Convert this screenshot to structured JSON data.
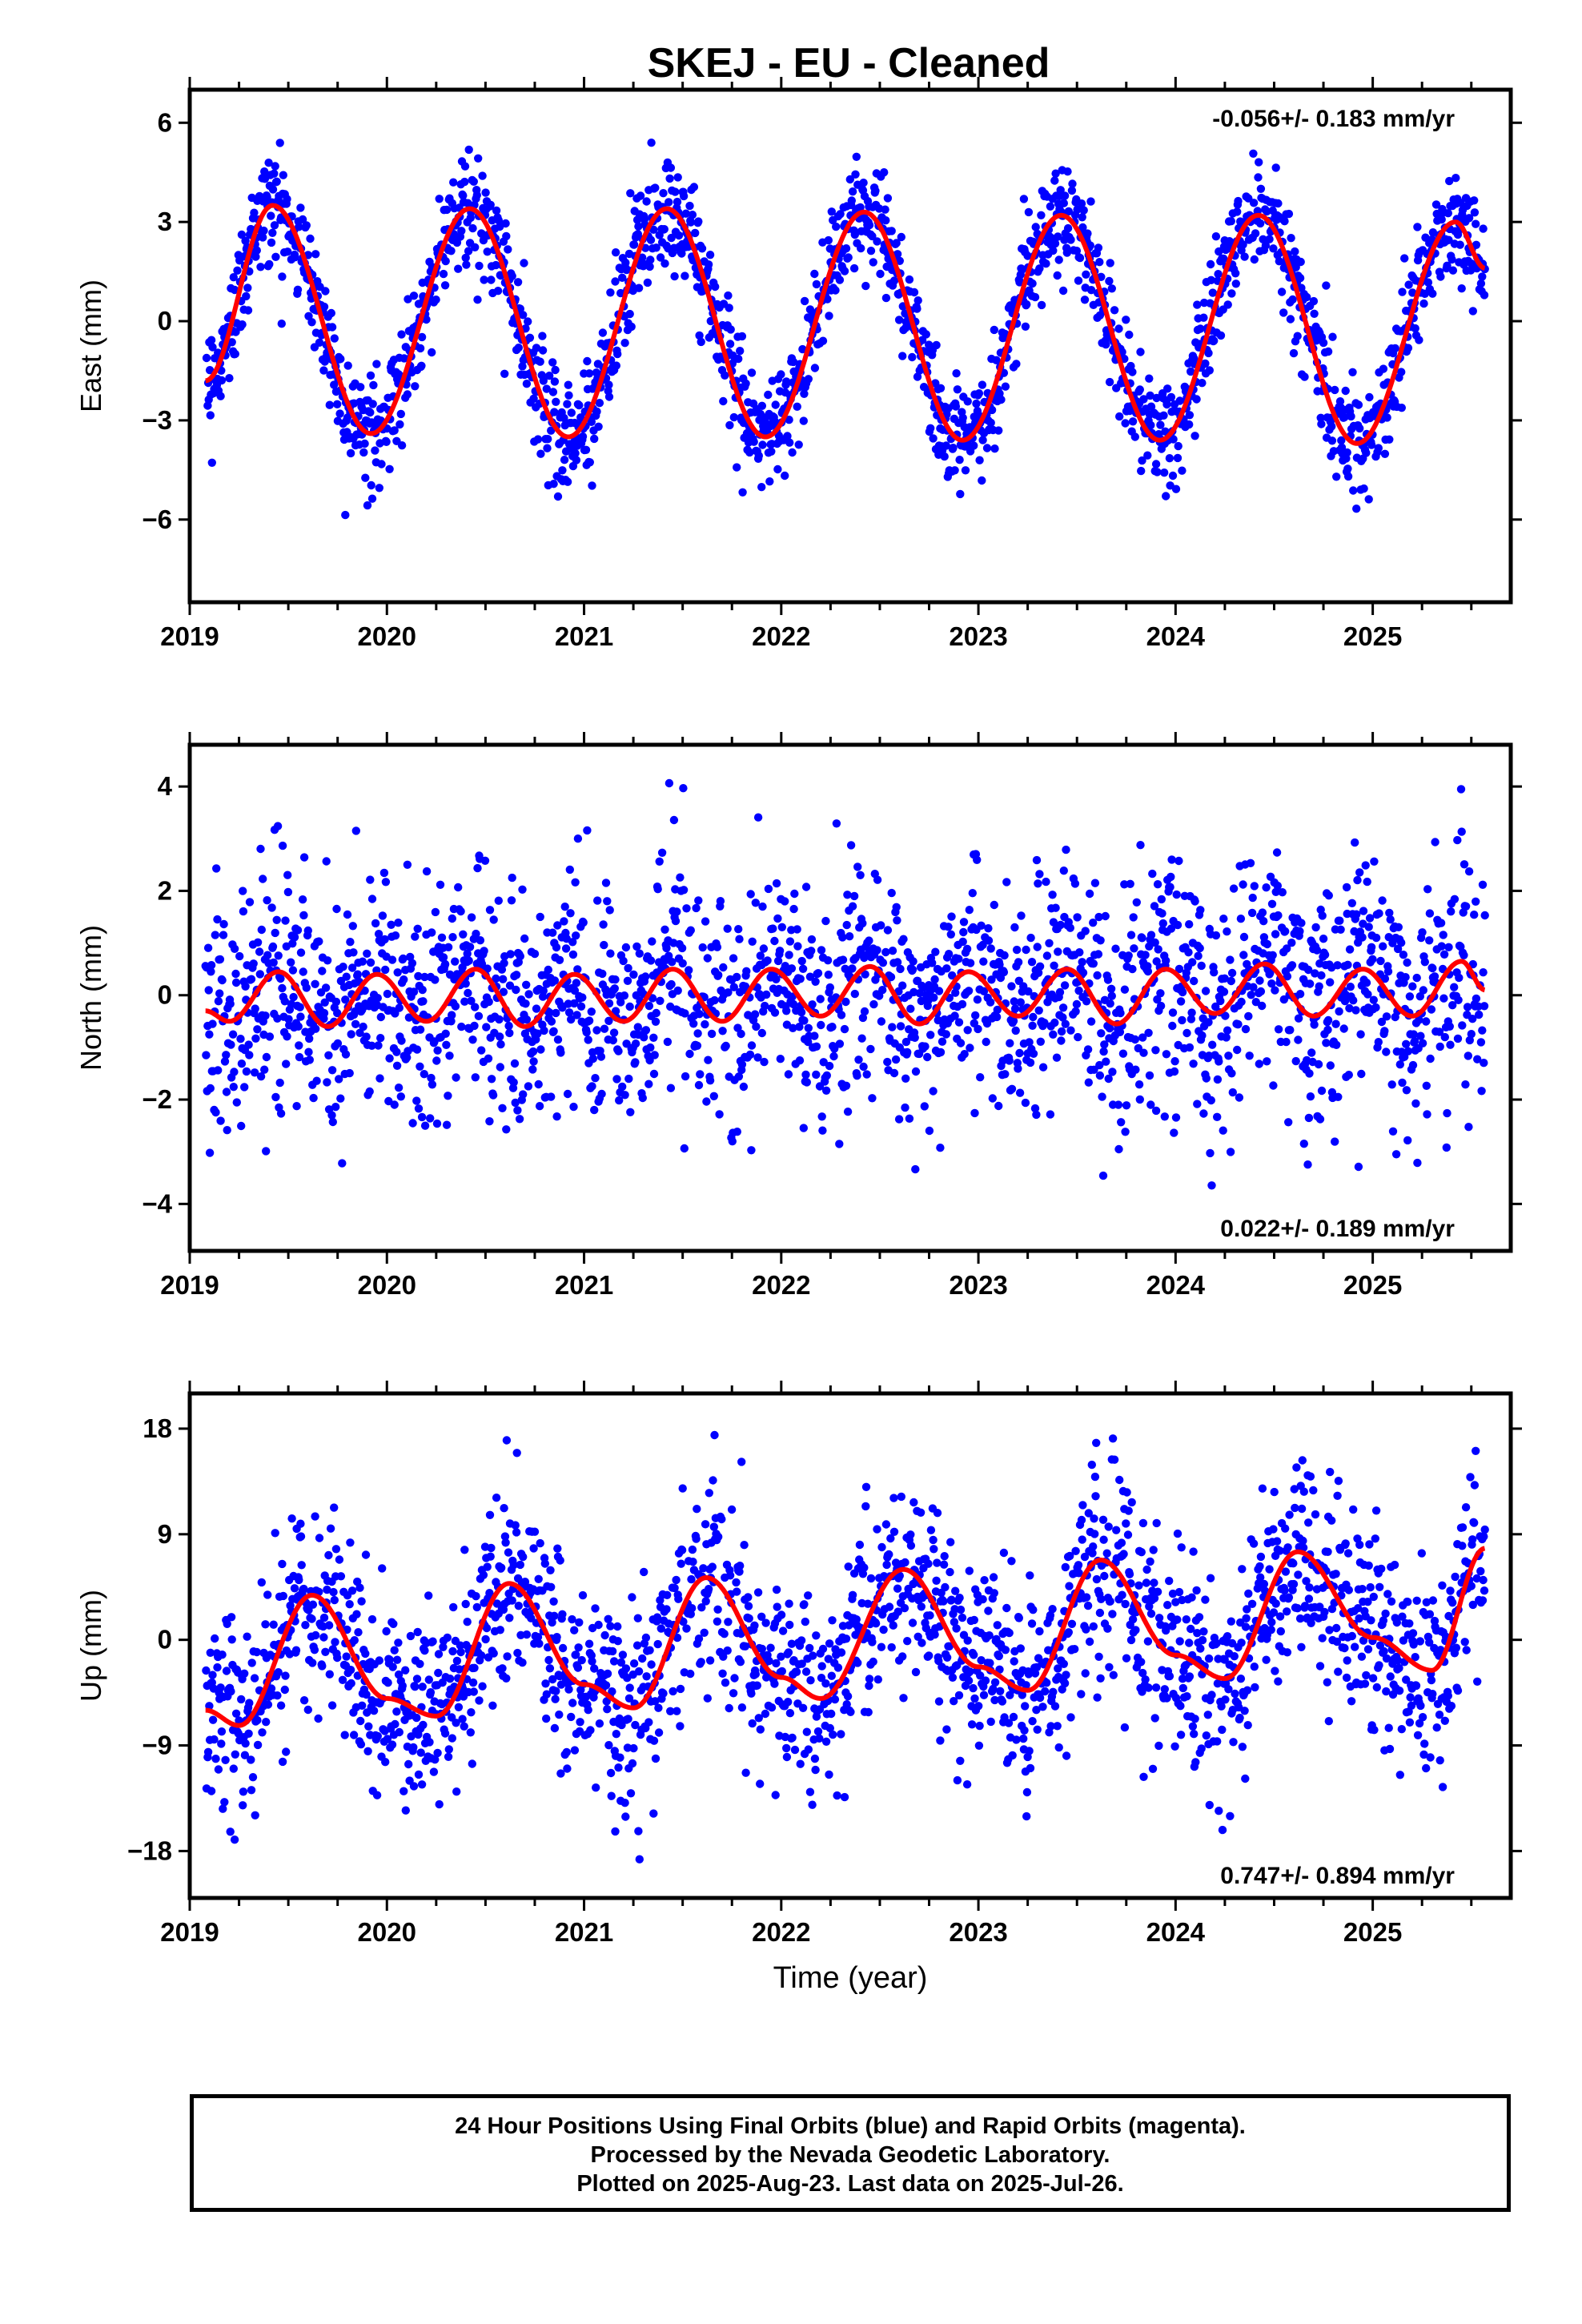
{
  "title": "SKEJ  - EU - Cleaned",
  "footer": {
    "line1": "24 Hour Positions Using Final Orbits (blue) and Rapid Orbits (magenta).",
    "line2": "Processed by the Nevada Geodetic Laboratory.",
    "line3": "Plotted on 2025-Aug-23. Last data on 2025-Jul-26."
  },
  "colors": {
    "points": "#0000ff",
    "fit": "#ff0000",
    "frame": "#000000"
  },
  "chart_data": [
    {
      "type": "scatter",
      "ylabel": "East (mm)",
      "xlabel": "",
      "xlim": [
        2019.0,
        2025.7
      ],
      "ylim": [
        -8.5,
        7.0
      ],
      "yticks": [
        -6,
        -3,
        0,
        3,
        6
      ],
      "xticks": [
        2019,
        2020,
        2021,
        2022,
        2023,
        2024,
        2025
      ],
      "xtick_labels": [
        "2019",
        "2020",
        "2021",
        "2022",
        "2023",
        "2024",
        "2025"
      ],
      "rate_label": "-0.056+/- 0.183 mm/yr",
      "rate_position": "top-right",
      "series": [
        {
          "kind": "points",
          "note": "daily positions, overall mean 0 with annual oscillation",
          "data_start": 2019.08,
          "data_end": 2025.57,
          "annual_amplitude": 3.45,
          "annual_phase_peak": 0.42,
          "scatter_sd": 0.85
        },
        {
          "kind": "fit_line",
          "x": [
            2019.08,
            2019.42,
            2019.92,
            2020.42,
            2020.92,
            2021.42,
            2021.92,
            2022.42,
            2022.92,
            2023.42,
            2023.92,
            2024.42,
            2024.92,
            2025.42,
            2025.57
          ],
          "y": [
            -1.8,
            3.5,
            -3.4,
            3.4,
            -3.5,
            3.4,
            -3.5,
            3.3,
            -3.6,
            3.2,
            -3.6,
            3.2,
            -3.7,
            3.0,
            1.6
          ]
        }
      ]
    },
    {
      "type": "scatter",
      "ylabel": "North (mm)",
      "xlabel": "",
      "xlim": [
        2019.0,
        2025.7
      ],
      "ylim": [
        -4.9,
        4.8
      ],
      "yticks": [
        -4,
        -2,
        0,
        2,
        4
      ],
      "xticks": [
        2019,
        2020,
        2021,
        2022,
        2023,
        2024,
        2025
      ],
      "xtick_labels": [
        "2019",
        "2020",
        "2021",
        "2022",
        "2023",
        "2024",
        "2025"
      ],
      "rate_label": "0.022+/- 0.189 mm/yr",
      "rate_position": "bottom-right",
      "series": [
        {
          "kind": "points",
          "note": "daily positions scattered about 0",
          "data_start": 2019.08,
          "data_end": 2025.57,
          "annual_amplitude": 0.6,
          "annual_phase_peak": 0.42,
          "scatter_sd": 1.1
        },
        {
          "kind": "fit_line",
          "x": [
            2019.08,
            2019.2,
            2019.45,
            2019.7,
            2019.95,
            2020.2,
            2020.45,
            2020.7,
            2020.95,
            2021.2,
            2021.45,
            2021.7,
            2021.95,
            2022.2,
            2022.45,
            2022.7,
            2022.95,
            2023.2,
            2023.45,
            2023.7,
            2023.95,
            2024.2,
            2024.45,
            2024.7,
            2024.95,
            2025.2,
            2025.45,
            2025.57
          ],
          "y": [
            -0.3,
            -0.5,
            0.45,
            -0.6,
            0.4,
            -0.5,
            0.5,
            -0.6,
            0.4,
            -0.5,
            0.5,
            -0.5,
            0.5,
            -0.4,
            0.55,
            -0.55,
            0.45,
            -0.4,
            0.5,
            -0.55,
            0.5,
            -0.35,
            0.6,
            -0.4,
            0.5,
            -0.4,
            0.65,
            0.1
          ]
        }
      ]
    },
    {
      "type": "scatter",
      "ylabel": "Up (mm)",
      "xlabel": "Time (year)",
      "xlim": [
        2019.0,
        2025.7
      ],
      "ylim": [
        -22,
        21
      ],
      "yticks": [
        -18,
        -9,
        0,
        9,
        18
      ],
      "ytick_labels": [
        "−18",
        "−9",
        "0",
        "9",
        "18"
      ],
      "xticks": [
        2019,
        2020,
        2021,
        2022,
        2023,
        2024,
        2025
      ],
      "xtick_labels": [
        "2019",
        "2020",
        "2021",
        "2022",
        "2023",
        "2024",
        "2025"
      ],
      "rate_label": "0.747+/- 0.894 mm/yr",
      "rate_position": "bottom-right",
      "series": [
        {
          "kind": "points",
          "note": "daily positions with annual signal and slight upward trend",
          "data_start": 2019.08,
          "data_end": 2025.57,
          "annual_amplitude": 5.0,
          "annual_phase_peak": 0.62,
          "scatter_sd": 4.2
        },
        {
          "kind": "fit_line",
          "x": [
            2019.08,
            2019.25,
            2019.62,
            2020.0,
            2020.25,
            2020.62,
            2021.0,
            2021.25,
            2021.62,
            2022.0,
            2022.2,
            2022.62,
            2023.0,
            2023.25,
            2023.62,
            2024.0,
            2024.25,
            2024.62,
            2025.0,
            2025.3,
            2025.57
          ],
          "y": [
            -6.0,
            -7.3,
            3.8,
            -5.0,
            -6.5,
            4.8,
            -3.8,
            -5.8,
            5.3,
            -3.2,
            -5.0,
            6.0,
            -2.3,
            -4.3,
            6.8,
            -1.3,
            -3.3,
            7.5,
            0.2,
            -2.6,
            7.8
          ]
        }
      ]
    }
  ]
}
